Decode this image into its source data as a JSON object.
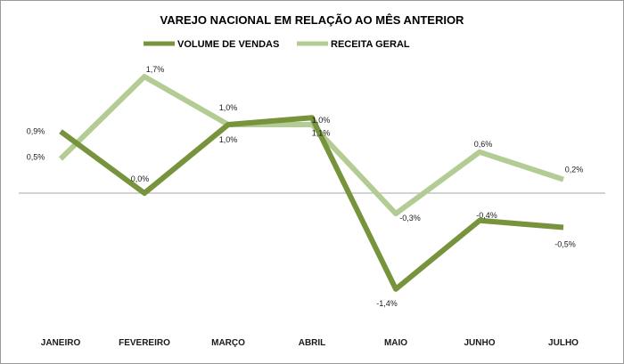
{
  "chart_data": {
    "type": "line",
    "title": "VAREJO NACIONAL EM RELAÇÃO AO MÊS ANTERIOR",
    "xlabel": "",
    "ylabel": "",
    "legend_position": "top",
    "grid": false,
    "categories": [
      "JANEIRO",
      "FEVEREIRO",
      "MARÇO",
      "ABRIL",
      "MAIO",
      "JUNHO",
      "JULHO"
    ],
    "ylim": [
      -2.0,
      2.0
    ],
    "series": [
      {
        "name": "VOLUME DE VENDAS",
        "color": "#77933c",
        "values": [
          0.9,
          0.0,
          1.0,
          1.1,
          -1.4,
          -0.4,
          -0.5
        ],
        "labels": [
          "0,9%",
          "0,0%",
          "1,0%",
          "1,1%",
          "-1,4%",
          "-0,4%",
          "-0,5%"
        ]
      },
      {
        "name": "RECEITA GERAL",
        "color": "#b3cc94",
        "values": [
          0.5,
          1.7,
          1.0,
          1.0,
          -0.3,
          0.6,
          0.2
        ],
        "labels": [
          "0,5%",
          "1,7%",
          "1,0%",
          "1,0%",
          "-0,3%",
          "0,6%",
          "0,2%"
        ]
      }
    ]
  }
}
